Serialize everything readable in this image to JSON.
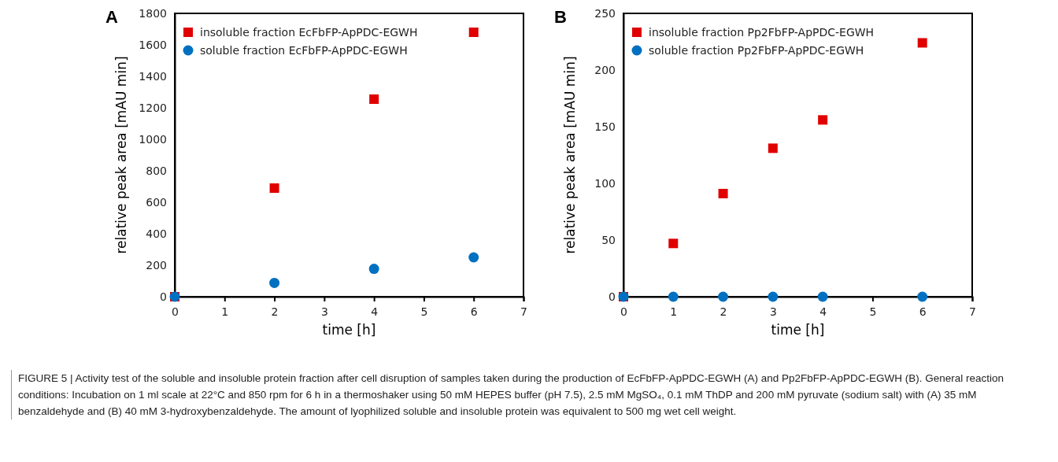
{
  "chart_data": [
    {
      "type": "scatter",
      "title": "A",
      "xlabel": "time   [h]",
      "ylabel": "relative peak area   [mAU min]",
      "xlim": [
        0,
        7
      ],
      "xticks": [
        0,
        1,
        2,
        3,
        4,
        5,
        6,
        7
      ],
      "ylim": [
        0,
        1800
      ],
      "yticks": [
        0,
        200,
        400,
        600,
        800,
        1000,
        1200,
        1400,
        1600,
        1800
      ],
      "grid": false,
      "legend": "top left",
      "series": [
        {
          "name": "insoluble fraction EcFbFP-ApPDC-EGWH",
          "color": "#e00000",
          "marker": "square",
          "x": [
            0,
            2,
            4,
            6
          ],
          "values": [
            0,
            690,
            1255,
            1680
          ]
        },
        {
          "name": "soluble fraction EcFbFP-ApPDC-EGWH",
          "color": "#0070c0",
          "marker": "circle",
          "x": [
            0,
            2,
            4,
            6
          ],
          "values": [
            0,
            88,
            177,
            250
          ]
        }
      ]
    },
    {
      "type": "scatter",
      "title": "B",
      "xlabel": "time   [h]",
      "ylabel": "relative peak area   [mAU min]",
      "xlim": [
        0,
        7
      ],
      "xticks": [
        0,
        1,
        2,
        3,
        4,
        5,
        6,
        7
      ],
      "ylim": [
        0,
        250
      ],
      "yticks": [
        0,
        50,
        100,
        150,
        200,
        250
      ],
      "grid": false,
      "legend": "top left",
      "series": [
        {
          "name": "insoluble fraction Pp2FbFP-ApPDC-EGWH",
          "color": "#e00000",
          "marker": "square",
          "x": [
            0,
            1,
            2,
            3,
            4,
            6
          ],
          "values": [
            0,
            47,
            91,
            131,
            156,
            224
          ]
        },
        {
          "name": "soluble fraction Pp2FbFP-ApPDC-EGWH",
          "color": "#0070c0",
          "marker": "circle",
          "x": [
            0,
            1,
            2,
            3,
            4,
            6
          ],
          "values": [
            0,
            0,
            0,
            0,
            0,
            0
          ]
        }
      ],
      "annotations": [
        "FIGURE 5 | Activity test of the soluble and insoluble protein fraction after cell disruption of samples taken during the production of EcFbFP-ApPDC-EGWH (A) and Pp2FbFP-ApPDC-EGWH (B). General reaction conditions: Incubation on 1 ml scale at 22°C and 850 rpm for 6 h in a thermoshaker using 50 mM HEPES buffer (pH 7.5), 2.5 mM MgSO₄, 0.1 mM ThDP and 200 mM pyruvate (sodium salt) with (A) 35 mM benzaldehyde and (B) 40 mM 3-hydroxybenzaldehyde. The amount of lyophilized soluble and insoluble protein was equivalent to 500 mg wet cell weight."
      ]
    }
  ]
}
